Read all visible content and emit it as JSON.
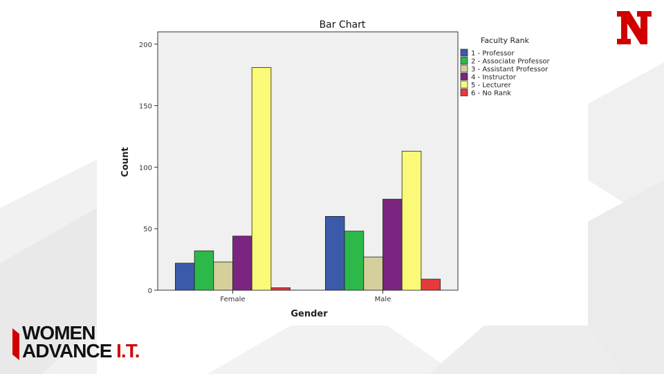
{
  "slide": {
    "brand_logo_letter": "N",
    "brand_color": "#d00000",
    "org_logo": {
      "line1": "WOMEN",
      "line2_a": "ADVANCE ",
      "line2_b": "I.T."
    }
  },
  "chart_data": {
    "type": "bar",
    "title": "Bar Chart",
    "xlabel": "Gender",
    "ylabel": "Count",
    "categories": [
      "Female",
      "Male"
    ],
    "ylim": [
      0,
      210
    ],
    "yticks": [
      0,
      50,
      100,
      150,
      200
    ],
    "ytick_labels": [
      "0",
      "50",
      "100",
      "150",
      "200"
    ],
    "grid": false,
    "legend": {
      "title": "Faculty Rank",
      "placement": "right"
    },
    "series": [
      {
        "name": "1 - Professor",
        "color": "#3b5aaa",
        "values": [
          22,
          60
        ]
      },
      {
        "name": "2 - Associate Professor",
        "color": "#2db84a",
        "values": [
          32,
          48
        ]
      },
      {
        "name": "3 - Assistant Professor",
        "color": "#d4cf9b",
        "values": [
          23,
          27
        ]
      },
      {
        "name": "4 - Instructor",
        "color": "#7a2680",
        "values": [
          44,
          74
        ]
      },
      {
        "name": "5 - Lecturer",
        "color": "#fafa78",
        "values": [
          181,
          113
        ]
      },
      {
        "name": "6 - No Rank",
        "color": "#e8393b",
        "values": [
          2,
          9
        ]
      }
    ]
  }
}
